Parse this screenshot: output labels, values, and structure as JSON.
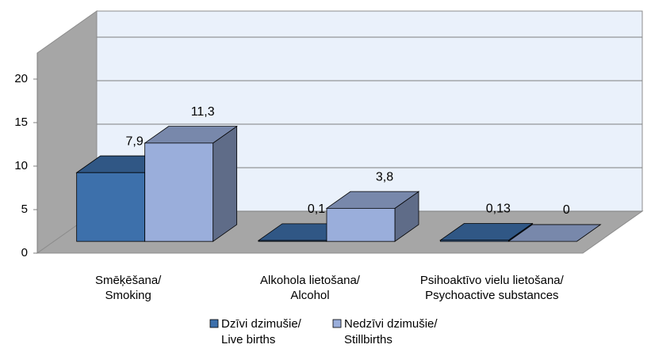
{
  "chart_data": {
    "type": "bar3d",
    "categories": [
      [
        "Smēķēšana/",
        "Smoking"
      ],
      [
        "Alkohola lietošana/",
        "Alcohol"
      ],
      [
        "Psihoaktīvo vielu lietošana/",
        "Psychoactive substances"
      ]
    ],
    "series": [
      {
        "name": [
          "Dzīvi dzimušie/",
          "Live births"
        ],
        "color": "#3d70ab",
        "values": [
          7.9,
          0.1,
          0.13
        ],
        "value_labels": [
          "7,9",
          "0,1",
          "0,13"
        ]
      },
      {
        "name": [
          "Nedzīvi dzimušie/",
          "Stillbirths"
        ],
        "color": "#9aaedb",
        "values": [
          11.3,
          3.8,
          0
        ],
        "value_labels": [
          "11,3",
          "3,8",
          "0"
        ]
      }
    ],
    "ylim": [
      0,
      23
    ],
    "yticks": [
      0,
      5,
      10,
      15,
      20
    ],
    "grid": true
  }
}
